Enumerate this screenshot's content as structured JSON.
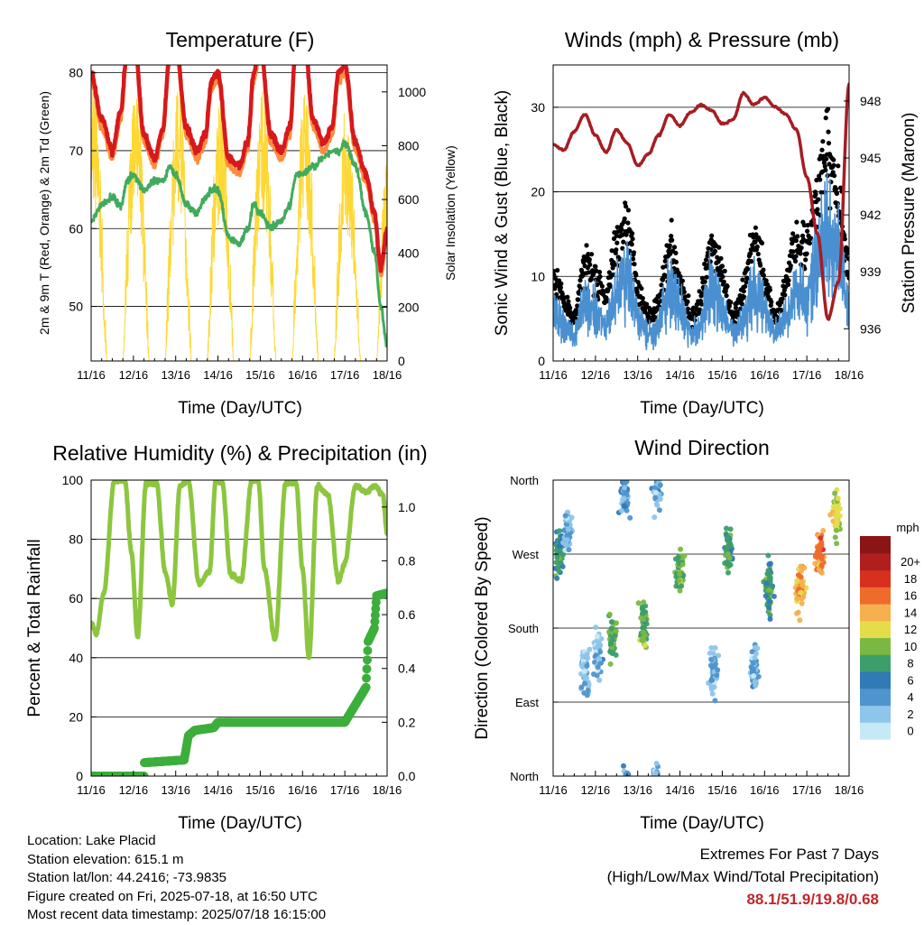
{
  "panels": {
    "temperature": {
      "title": "Temperature (F)",
      "xlabel": "Time (Day/UTC)",
      "ylabel_left": "2m & 9m T (Red, Orange) & 2m Td (Green)",
      "ylabel_right": "Solar Insolation (Yellow)"
    },
    "winds": {
      "title": "Winds (mph) & Pressure (mb)",
      "xlabel": "Time (Day/UTC)",
      "ylabel_left": "Sonic Wind & Gust (Blue, Black)",
      "ylabel_right": "Station Pressure (Maroon)"
    },
    "humidity": {
      "title": "Relative Humidity (%) & Precipitation (in)",
      "xlabel": "Time (Day/UTC)",
      "ylabel_left": "Percent & Total Rainfall"
    },
    "direction": {
      "title": "Wind Direction",
      "xlabel": "Time (Day/UTC)",
      "ylabel_left": "Direction (Colored By Speed)"
    }
  },
  "info": {
    "location": "Location: Lake Placid",
    "elevation": "Station elevation: 615.1 m",
    "latlon": "Station lat/lon: 44.2416; -73.9835",
    "created": "Figure created on Fri, 2025-07-18, at 16:50 UTC",
    "recent": "Most recent data timestamp: 2025/07/18 16:15:00"
  },
  "extremes": {
    "line1": "Extremes For Past 7 Days",
    "line2": "(High/Low/Max Wind/Total Precipitation)",
    "values": "88.1/51.9/19.8/0.68"
  },
  "chart_data": [
    {
      "type": "line",
      "title": "Temperature (F)",
      "xlabel": "Time (Day/UTC)",
      "ylabel": "2m & 9m T (Red, Orange) & 2m Td (Green)",
      "ylabel_right": "Solar Insolation (Yellow)",
      "x_ticks": [
        "11/16",
        "12/16",
        "13/16",
        "14/16",
        "15/16",
        "16/16",
        "17/16",
        "18/16"
      ],
      "ylim": [
        43,
        81
      ],
      "y_ticks": [
        50,
        60,
        70,
        80
      ],
      "ylim_right": [
        0,
        1100
      ],
      "y_ticks_right": [
        0,
        200,
        400,
        600,
        800,
        1000
      ],
      "grid": true,
      "x_days": [
        0,
        0.25,
        0.5,
        0.7,
        0.85,
        1,
        1.25,
        1.5,
        1.7,
        1.85,
        2,
        2.25,
        2.5,
        2.7,
        2.85,
        3,
        3.25,
        3.5,
        3.7,
        3.85,
        4,
        4.25,
        4.5,
        4.7,
        4.85,
        5,
        5.25,
        5.5,
        5.7,
        5.85,
        6,
        6.25,
        6.5,
        6.7,
        6.85,
        7
      ],
      "series": [
        {
          "name": "2m T",
          "color": "#d7191c",
          "values": [
            80,
            74,
            70,
            75,
            83,
            86,
            72,
            69,
            73,
            82,
            84,
            73,
            70,
            72,
            79,
            80,
            69,
            68,
            71,
            80,
            84,
            72,
            70,
            73,
            84,
            88,
            74,
            71,
            73,
            80,
            81,
            71,
            67,
            62,
            55,
            60
          ]
        },
        {
          "name": "9m T",
          "color": "#fd8d3c",
          "values": [
            79,
            73,
            69,
            74,
            82,
            85,
            71,
            68,
            72,
            81,
            83,
            72,
            69,
            71,
            78,
            79,
            68,
            67,
            70,
            79,
            83,
            71,
            69,
            72,
            83,
            87,
            73,
            70,
            72,
            79,
            80,
            70,
            66,
            61,
            54,
            59
          ]
        },
        {
          "name": "2m Td",
          "color": "#41ab5d",
          "values": [
            61,
            63,
            64,
            63,
            66,
            67,
            65,
            66,
            66,
            68,
            67,
            63,
            62,
            64,
            65,
            65,
            59,
            58,
            60,
            63,
            62,
            60,
            61,
            63,
            67,
            67,
            68,
            69,
            70,
            70,
            71,
            68,
            62,
            57,
            50,
            45
          ]
        }
      ],
      "insolation": {
        "name": "Solar Insolation",
        "color": "#fdd835",
        "peaks": [
          1000,
          980,
          1000,
          960,
          1000,
          990,
          840,
          950
        ]
      }
    },
    {
      "type": "line",
      "title": "Winds (mph) & Pressure (mb)",
      "xlabel": "Time (Day/UTC)",
      "ylabel": "Sonic Wind & Gust (Blue, Black)",
      "ylabel_right": "Station Pressure (Maroon)",
      "x_ticks": [
        "11/16",
        "12/16",
        "13/16",
        "14/16",
        "15/16",
        "16/16",
        "17/16",
        "18/16"
      ],
      "ylim": [
        0,
        35
      ],
      "y_ticks": [
        0,
        10,
        20,
        30
      ],
      "ylim_right": [
        934.3,
        949.9
      ],
      "y_ticks_right": [
        936,
        939,
        942,
        945,
        948
      ],
      "grid": true,
      "x_days": [
        0,
        0.25,
        0.5,
        0.75,
        1,
        1.25,
        1.5,
        1.75,
        2,
        2.25,
        2.5,
        2.75,
        3,
        3.25,
        3.5,
        3.75,
        4,
        4.25,
        4.5,
        4.75,
        5,
        5.25,
        5.5,
        5.75,
        6,
        6.25,
        6.5,
        6.75,
        7
      ],
      "series": [
        {
          "name": "Sonic Wind",
          "color": "#4a90d0",
          "values": [
            6,
            4,
            3,
            7,
            6,
            4,
            8,
            10,
            5,
            3,
            4,
            9,
            6,
            3,
            4,
            9,
            6,
            3,
            5,
            9,
            6,
            3,
            5,
            9,
            7,
            12,
            15,
            12,
            6
          ]
        },
        {
          "name": "Gust",
          "color": "#000000",
          "values": [
            10,
            7,
            5,
            12,
            10,
            7,
            14,
            17,
            9,
            5,
            7,
            14,
            10,
            5,
            7,
            14,
            10,
            5,
            8,
            15,
            10,
            5,
            9,
            15,
            13,
            20,
            25,
            19,
            10
          ]
        },
        {
          "name": "Station Pressure",
          "color": "#a51d23",
          "values": [
            945.7,
            945.4,
            946.4,
            947.3,
            946.2,
            945.3,
            946.5,
            945.8,
            944.6,
            945.2,
            946.2,
            947.3,
            946.7,
            947.4,
            947.8,
            947.5,
            946.8,
            947.0,
            948.4,
            947.8,
            948.2,
            947.7,
            947.3,
            946.5,
            944.0,
            941.0,
            936.5,
            938.5,
            948.9
          ]
        }
      ]
    },
    {
      "type": "line",
      "title": "Relative Humidity (%) & Precipitation (in)",
      "xlabel": "Time (Day/UTC)",
      "ylabel": "Percent & Total Rainfall",
      "x_ticks": [
        "11/16",
        "12/16",
        "13/16",
        "14/16",
        "15/16",
        "16/16",
        "17/16",
        "18/16"
      ],
      "ylim": [
        0,
        100
      ],
      "y_ticks": [
        0,
        20,
        40,
        60,
        80,
        100
      ],
      "ylim_right": [
        0,
        1.1
      ],
      "y_ticks_right": [
        0.0,
        0.2,
        0.4,
        0.6,
        0.8,
        1.0
      ],
      "grid": true,
      "series": [
        {
          "name": "Relative Humidity",
          "color": "#8cc63f",
          "x_days": [
            0,
            0.12,
            0.3,
            0.55,
            0.8,
            0.95,
            1.1,
            1.3,
            1.55,
            1.75,
            1.92,
            2.1,
            2.3,
            2.55,
            2.8,
            2.95,
            3.1,
            3.3,
            3.55,
            3.8,
            3.95,
            4.1,
            4.35,
            4.6,
            4.85,
            5.0,
            5.15,
            5.35,
            5.6,
            5.85,
            6.0,
            6.25,
            6.5,
            6.7,
            6.9,
            7.0
          ],
          "values": [
            52,
            48,
            62,
            100,
            100,
            76,
            47,
            99,
            99,
            69,
            58,
            98,
            100,
            65,
            69,
            100,
            99,
            68,
            66,
            100,
            100,
            70,
            46,
            99,
            99,
            70,
            40,
            98,
            95,
            66,
            72,
            98,
            96,
            98,
            95,
            82
          ]
        },
        {
          "name": "Total Precipitation",
          "color": "#3cae3c",
          "unit": "in",
          "x_days": [
            0,
            1.25,
            1.26,
            2.2,
            2.3,
            2.45,
            2.9,
            3.0,
            6.0,
            6.5,
            6.55,
            6.7,
            6.75,
            7.0
          ],
          "values": [
            0.0,
            0.0,
            0.05,
            0.06,
            0.15,
            0.17,
            0.18,
            0.2,
            0.2,
            0.33,
            0.5,
            0.55,
            0.67,
            0.68
          ]
        }
      ]
    },
    {
      "type": "scatter",
      "title": "Wind Direction",
      "xlabel": "Time (Day/UTC)",
      "ylabel": "Direction (Colored By Speed)",
      "x_ticks": [
        "11/16",
        "12/16",
        "13/16",
        "14/16",
        "15/16",
        "16/16",
        "17/16",
        "18/16"
      ],
      "y_ticks": [
        "North",
        "East",
        "South",
        "West",
        "North"
      ],
      "ylim": [
        0,
        360
      ],
      "grid": true,
      "colorbar": {
        "title": "mph",
        "labels": [
          "0",
          "2",
          "4",
          "6",
          "8",
          "10",
          "12",
          "14",
          "16",
          "18",
          "20+"
        ],
        "colors": [
          "#c6e9f7",
          "#8ec5ea",
          "#4f95cd",
          "#3279b8",
          "#3d9e6b",
          "#7ab843",
          "#e4dd4b",
          "#f7b04f",
          "#ef6b2c",
          "#d7301f",
          "#b01e1e",
          "#8b1414"
        ]
      },
      "clusters": [
        {
          "x_day": 0.15,
          "dir": 270,
          "speed": 7
        },
        {
          "x_day": 0.35,
          "dir": 300,
          "speed": 3
        },
        {
          "x_day": 0.75,
          "dir": 130,
          "speed": 2
        },
        {
          "x_day": 1.05,
          "dir": 150,
          "speed": 3
        },
        {
          "x_day": 1.4,
          "dir": 170,
          "speed": 9
        },
        {
          "x_day": 1.7,
          "dir": 345,
          "speed": 4
        },
        {
          "x_day": 2.15,
          "dir": 180,
          "speed": 9
        },
        {
          "x_day": 2.45,
          "dir": 350,
          "speed": 3
        },
        {
          "x_day": 3.0,
          "dir": 250,
          "speed": 9
        },
        {
          "x_day": 3.8,
          "dir": 125,
          "speed": 3
        },
        {
          "x_day": 4.15,
          "dir": 275,
          "speed": 8
        },
        {
          "x_day": 4.75,
          "dir": 130,
          "speed": 3
        },
        {
          "x_day": 5.1,
          "dir": 230,
          "speed": 8
        },
        {
          "x_day": 5.85,
          "dir": 230,
          "speed": 14
        },
        {
          "x_day": 6.3,
          "dir": 270,
          "speed": 15
        },
        {
          "x_day": 6.7,
          "dir": 320,
          "speed": 12
        }
      ]
    }
  ]
}
